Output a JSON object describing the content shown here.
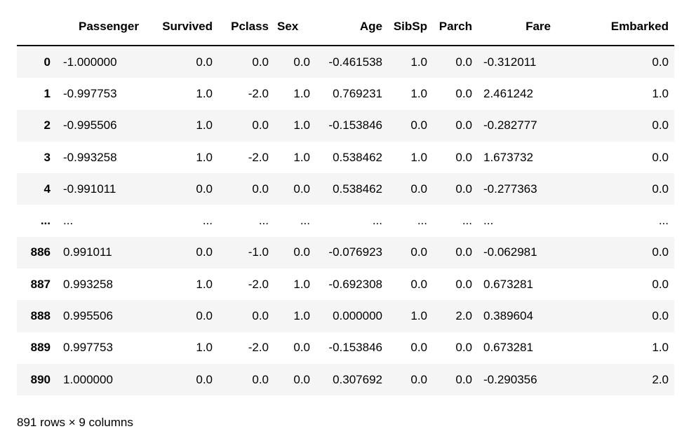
{
  "table": {
    "columns": [
      "",
      "Passenger",
      "Survived",
      "Pclass",
      "Sex",
      "Age",
      "SibSp",
      "Parch",
      "Fare",
      "Embarked"
    ],
    "rows": [
      {
        "index": "0",
        "cells": [
          "-1.000000",
          "0.0",
          "0.0",
          "0.0",
          "-0.461538",
          "1.0",
          "0.0",
          "-0.312011",
          "0.0"
        ]
      },
      {
        "index": "1",
        "cells": [
          "-0.997753",
          "1.0",
          "-2.0",
          "1.0",
          "0.769231",
          "1.0",
          "0.0",
          "2.461242",
          "1.0"
        ]
      },
      {
        "index": "2",
        "cells": [
          "-0.995506",
          "1.0",
          "0.0",
          "1.0",
          "-0.153846",
          "0.0",
          "0.0",
          "-0.282777",
          "0.0"
        ]
      },
      {
        "index": "3",
        "cells": [
          "-0.993258",
          "1.0",
          "-2.0",
          "1.0",
          "0.538462",
          "1.0",
          "0.0",
          "1.673732",
          "0.0"
        ]
      },
      {
        "index": "4",
        "cells": [
          "-0.991011",
          "0.0",
          "0.0",
          "0.0",
          "0.538462",
          "0.0",
          "0.0",
          "-0.277363",
          "0.0"
        ]
      },
      {
        "index": "...",
        "cells": [
          "...",
          "...",
          "...",
          "...",
          "...",
          "...",
          "...",
          "...",
          "..."
        ]
      },
      {
        "index": "886",
        "cells": [
          "0.991011",
          "0.0",
          "-1.0",
          "0.0",
          "-0.076923",
          "0.0",
          "0.0",
          "-0.062981",
          "0.0"
        ]
      },
      {
        "index": "887",
        "cells": [
          "0.993258",
          "1.0",
          "-2.0",
          "1.0",
          "-0.692308",
          "0.0",
          "0.0",
          "0.673281",
          "0.0"
        ]
      },
      {
        "index": "888",
        "cells": [
          "0.995506",
          "0.0",
          "0.0",
          "1.0",
          "0.000000",
          "1.0",
          "2.0",
          "0.389604",
          "0.0"
        ]
      },
      {
        "index": "889",
        "cells": [
          "0.997753",
          "1.0",
          "-2.0",
          "0.0",
          "-0.153846",
          "0.0",
          "0.0",
          "0.673281",
          "1.0"
        ]
      },
      {
        "index": "890",
        "cells": [
          "1.000000",
          "0.0",
          "0.0",
          "0.0",
          "0.307692",
          "0.0",
          "0.0",
          "-0.290356",
          "2.0"
        ]
      }
    ]
  },
  "summary": "891 rows × 9 columns",
  "colors": {
    "stripe": "#f5f5f5",
    "text": "#000000",
    "header_rule": "#000000"
  }
}
